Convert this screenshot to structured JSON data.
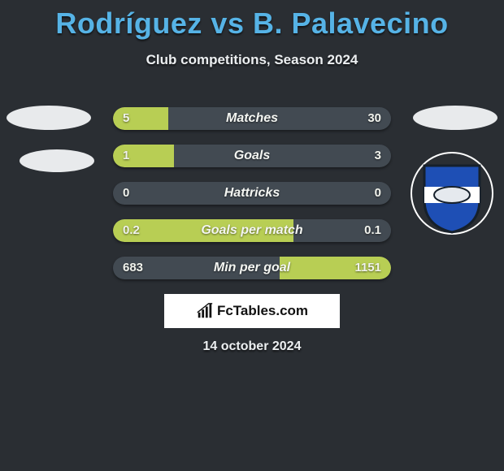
{
  "title": "Rodríguez vs B. Palavecino",
  "subtitle": "Club competitions, Season 2024",
  "date": "14 october 2024",
  "logo": {
    "text": "FcTables.com"
  },
  "colors": {
    "background": "#2a2e33",
    "title_color": "#56b3e6",
    "text_color": "#eceff1",
    "bar_track": "#424a52",
    "bar_fill": "#b8ce54",
    "ellipse_fill": "#e8eaec",
    "logo_bg": "#ffffff"
  },
  "badge": {
    "shield_fill": "#1e4fb5",
    "shield_border": "#16202b",
    "band_color": "#ffffff",
    "circle_stroke": "#ffffff"
  },
  "typography": {
    "title_size": 36,
    "subtitle_size": 17,
    "bar_label_size": 16,
    "bar_value_size": 15,
    "date_size": 16,
    "font_family": "Arial"
  },
  "bars": [
    {
      "label": "Matches",
      "left_val": "5",
      "right_val": "30",
      "left_pct": 20,
      "right_pct": 0
    },
    {
      "label": "Goals",
      "left_val": "1",
      "right_val": "3",
      "left_pct": 22,
      "right_pct": 0
    },
    {
      "label": "Hattricks",
      "left_val": "0",
      "right_val": "0",
      "left_pct": 0,
      "right_pct": 0
    },
    {
      "label": "Goals per match",
      "left_val": "0.2",
      "right_val": "0.1",
      "left_pct": 65,
      "right_pct": 0
    },
    {
      "label": "Min per goal",
      "left_val": "683",
      "right_val": "1151",
      "left_pct": 0,
      "right_pct": 40
    }
  ]
}
